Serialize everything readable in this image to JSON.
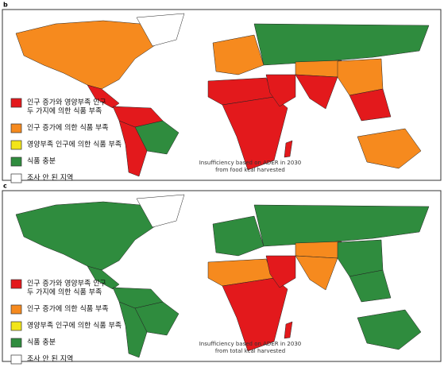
{
  "panels": [
    {
      "label": "b",
      "legend": [
        {
          "lines": [
            "인구 증가와 영양부족 인구",
            "두 가지에 의한 식품 부족"
          ],
          "color": "#e3191c"
        },
        {
          "lines": [
            "인구 증가에 의한 식품 부족"
          ],
          "color": "#f68a1e"
        },
        {
          "lines": [
            "영양부족 인구에 의한 식품 부족"
          ],
          "color": "#f2e51a"
        },
        {
          "lines": [
            "식품 충분"
          ],
          "color": "#2f8c3e"
        },
        {
          "lines": [
            "조사 안 된 지역"
          ],
          "color": "#ffffff"
        }
      ],
      "caption": [
        "Insufficiency based on ADER in 2030",
        "from food kcal harvested"
      ]
    },
    {
      "label": "c",
      "legend": [
        {
          "lines": [
            "인구 증가와 영양부족 인구",
            "두 가지에 의한 식품 부족"
          ],
          "color": "#e3191c"
        },
        {
          "lines": [
            "인구 증가에 의한 식품 부족"
          ],
          "color": "#f68a1e"
        },
        {
          "lines": [
            "영양부족 인구에 의한 식품 부족"
          ],
          "color": "#f2e51a"
        },
        {
          "lines": [
            "식품 충분"
          ],
          "color": "#2f8c3e"
        },
        {
          "lines": [
            "조사 안 된 지역"
          ],
          "color": "#ffffff"
        }
      ],
      "caption": [
        "Insufficiency based on ADER in 2030",
        "from total kcal harvested"
      ]
    }
  ]
}
